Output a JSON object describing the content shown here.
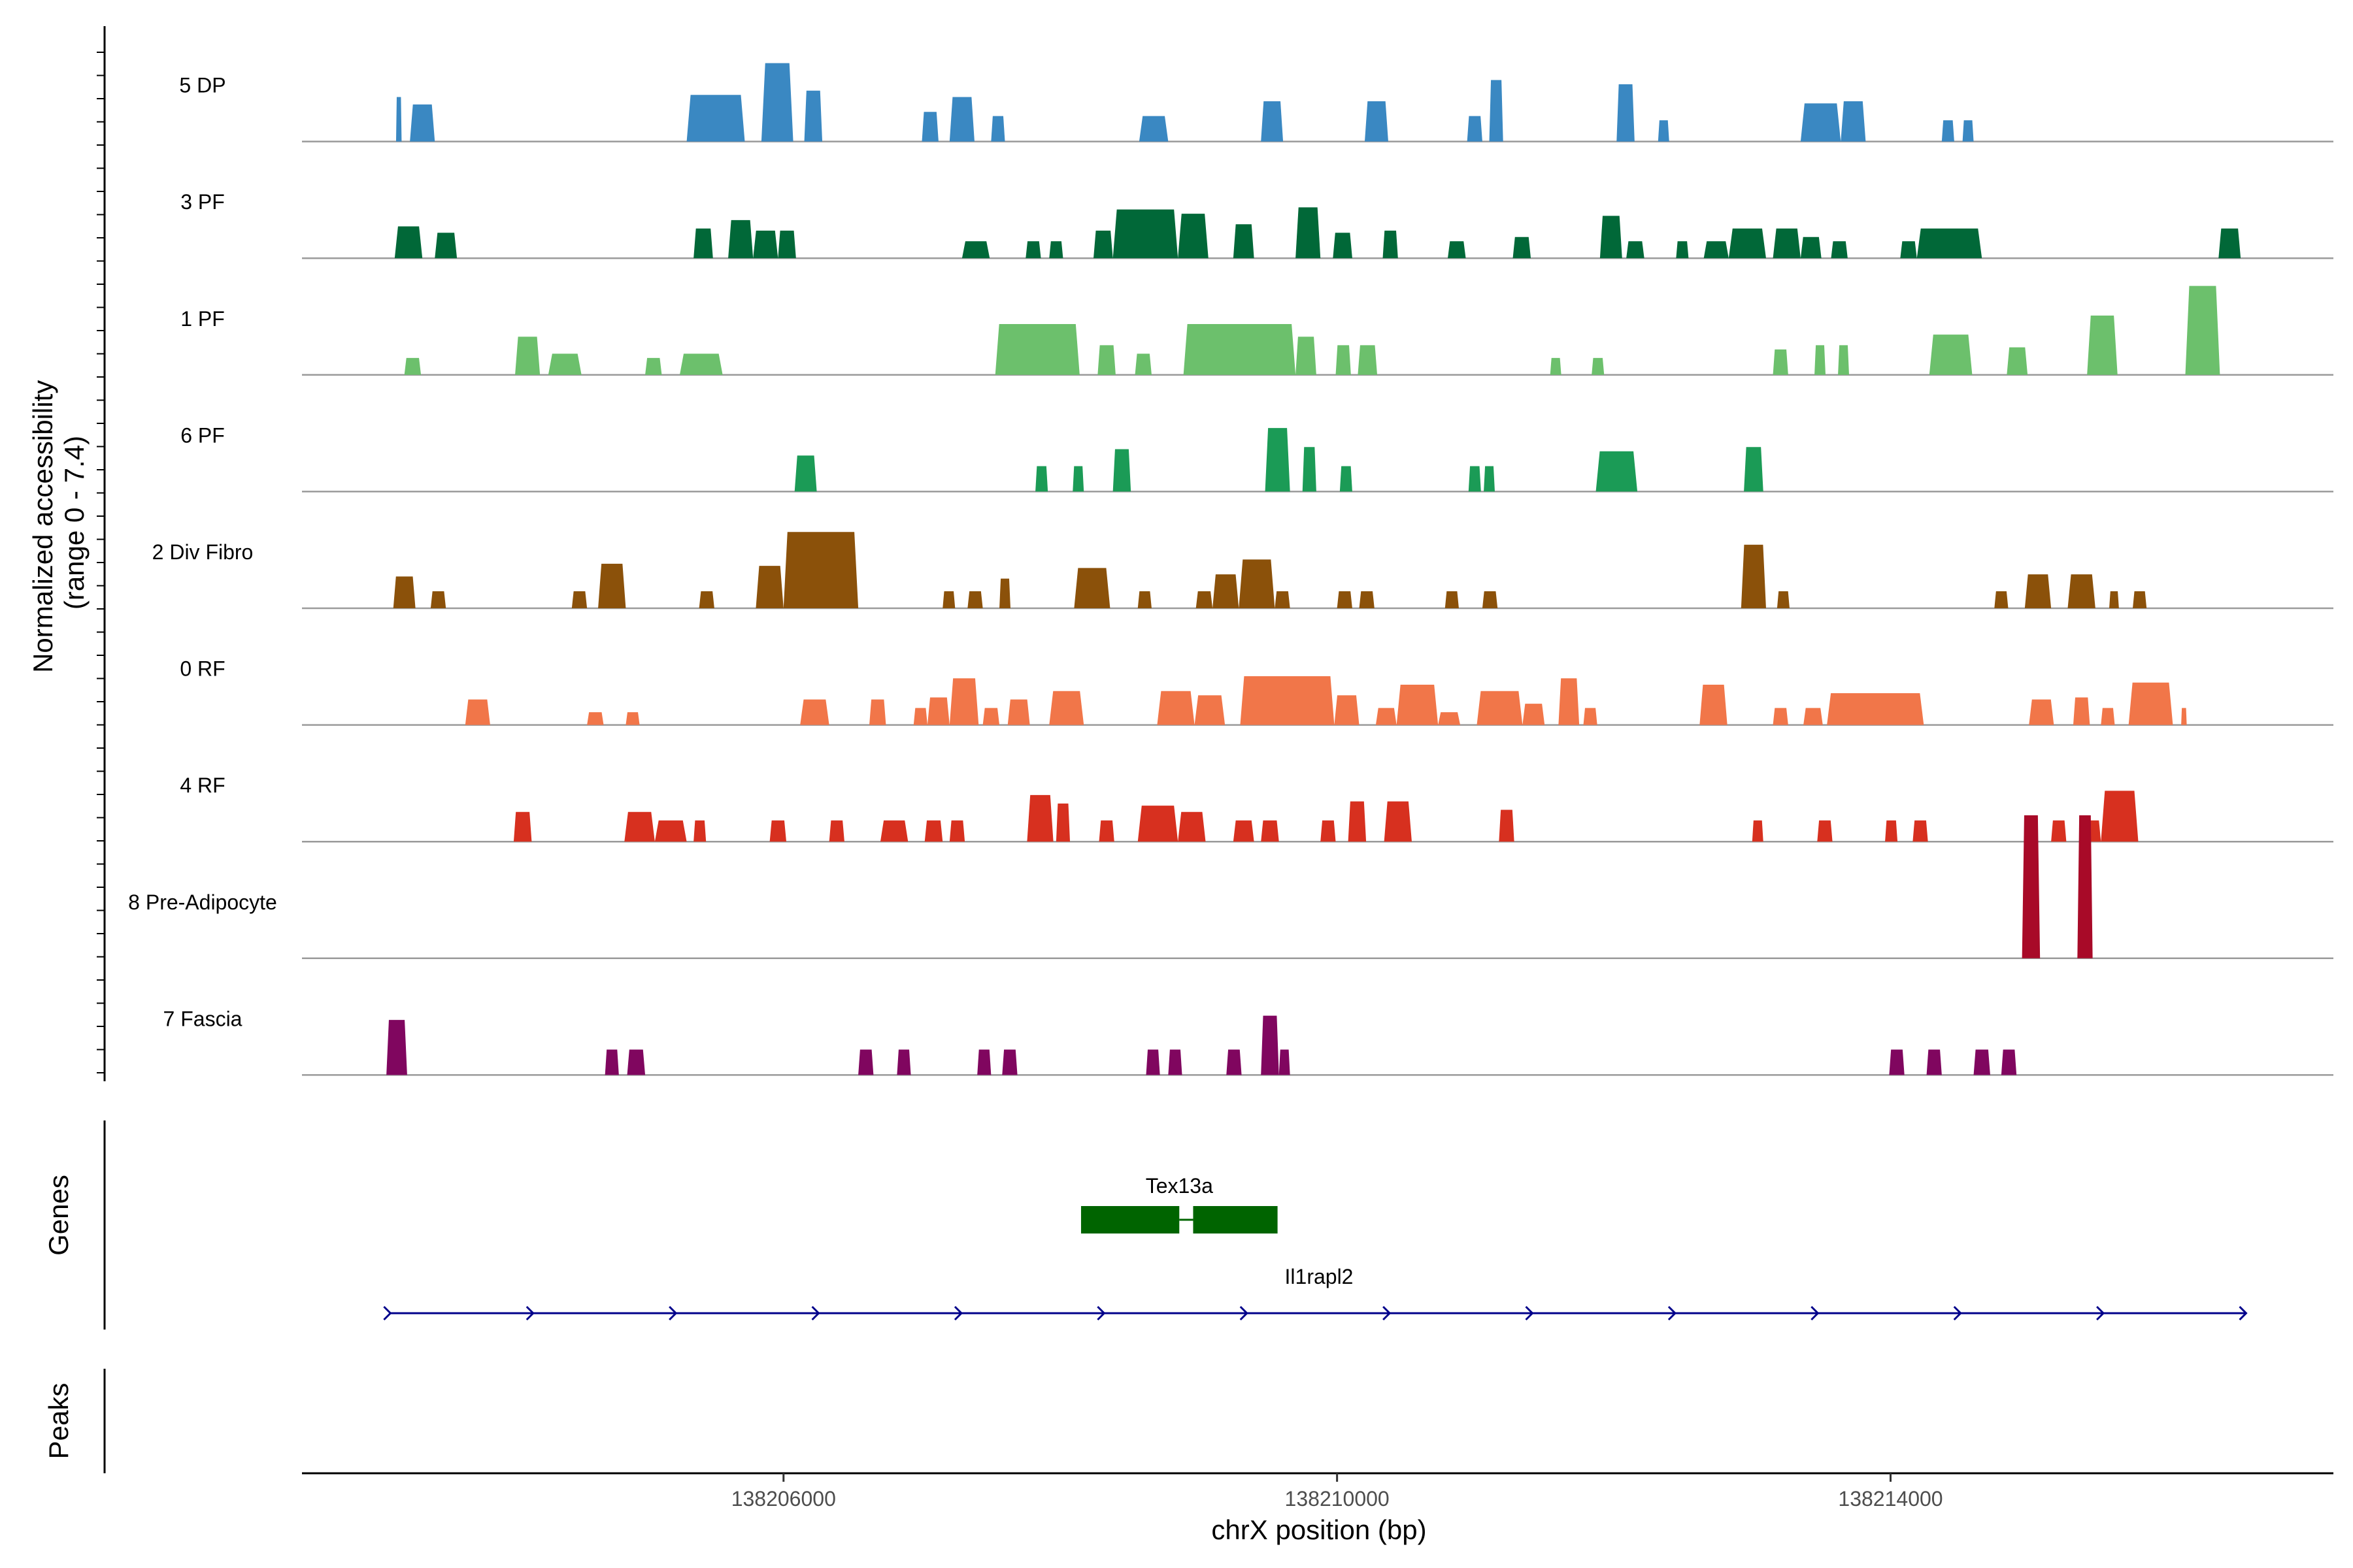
{
  "chart_data": {
    "type": "area",
    "title": "",
    "xlabel": "chrX position (bp)",
    "ylabel": "Normalized accessibility\n(range 0 - 7.4)",
    "y_range": [
      0,
      7.4
    ],
    "x_range": [
      138202520,
      138217200
    ],
    "x_ticks": [
      {
        "value": 138206000,
        "label": "138206000"
      },
      {
        "value": 138210000,
        "label": "138210000"
      },
      {
        "value": 138214000,
        "label": "138214000"
      }
    ],
    "tracks": [
      {
        "name": "5 DP",
        "color": "#3a88c2",
        "peaks": [
          [
            138203200,
            138203240,
            4.2
          ],
          [
            138203300,
            138203480,
            3.5
          ],
          [
            138205300,
            138205720,
            4.4
          ],
          [
            138205840,
            138206070,
            7.4
          ],
          [
            138206150,
            138206280,
            4.8
          ],
          [
            138207000,
            138207120,
            2.8
          ],
          [
            138207200,
            138207380,
            4.2
          ],
          [
            138207500,
            138207600,
            2.4
          ],
          [
            138208570,
            138208780,
            2.4
          ],
          [
            138209450,
            138209610,
            3.8
          ],
          [
            138210200,
            138210370,
            3.8
          ],
          [
            138210940,
            138211050,
            2.4
          ],
          [
            138211100,
            138211200,
            5.8
          ],
          [
            138212020,
            138212150,
            5.4
          ],
          [
            138212320,
            138212400,
            2.0
          ],
          [
            138213350,
            138213640,
            3.6
          ],
          [
            138213640,
            138213820,
            3.8
          ],
          [
            138214370,
            138214460,
            2.0
          ],
          [
            138214520,
            138214600,
            2.0
          ]
        ]
      },
      {
        "name": "3 PF",
        "color": "#016838",
        "peaks": [
          [
            138203190,
            138203390,
            3.0
          ],
          [
            138203480,
            138203640,
            2.4
          ],
          [
            138205350,
            138205490,
            2.8
          ],
          [
            138205600,
            138205780,
            3.6
          ],
          [
            138205780,
            138205960,
            2.6
          ],
          [
            138205960,
            138206090,
            2.6
          ],
          [
            138207290,
            138207490,
            1.6
          ],
          [
            138207750,
            138207860,
            1.6
          ],
          [
            138207920,
            138208020,
            1.6
          ],
          [
            138208240,
            138208380,
            2.6
          ],
          [
            138208380,
            138208850,
            4.6
          ],
          [
            138208850,
            138209070,
            4.2
          ],
          [
            138209250,
            138209400,
            3.2
          ],
          [
            138209700,
            138209880,
            4.8
          ],
          [
            138209970,
            138210110,
            2.4
          ],
          [
            138210330,
            138210440,
            2.6
          ],
          [
            138210800,
            138210930,
            1.6
          ],
          [
            138211270,
            138211400,
            2.0
          ],
          [
            138211900,
            138212060,
            4.0
          ],
          [
            138212090,
            138212220,
            1.6
          ],
          [
            138212450,
            138212540,
            1.6
          ],
          [
            138212650,
            138212830,
            1.6
          ],
          [
            138212830,
            138213100,
            2.8
          ],
          [
            138213150,
            138213350,
            2.8
          ],
          [
            138213350,
            138213500,
            2.0
          ],
          [
            138213570,
            138213690,
            1.6
          ],
          [
            138214070,
            138214190,
            1.6
          ],
          [
            138214190,
            138214660,
            2.8
          ],
          [
            138216370,
            138216530,
            2.8
          ]
        ]
      },
      {
        "name": "1 PF",
        "color": "#6cc06c",
        "peaks": [
          [
            138203260,
            138203380,
            1.6
          ],
          [
            138204060,
            138204240,
            3.6
          ],
          [
            138204300,
            138204540,
            2.0
          ],
          [
            138205000,
            138205120,
            1.6
          ],
          [
            138205250,
            138205560,
            2.0
          ],
          [
            138207530,
            138208140,
            4.8
          ],
          [
            138208270,
            138208400,
            2.8
          ],
          [
            138208540,
            138208660,
            2.0
          ],
          [
            138208890,
            138209700,
            4.8
          ],
          [
            138209700,
            138209850,
            3.6
          ],
          [
            138209990,
            138210100,
            2.8
          ],
          [
            138210150,
            138210290,
            2.8
          ],
          [
            138211540,
            138211620,
            1.6
          ],
          [
            138211840,
            138211930,
            1.6
          ],
          [
            138213150,
            138213260,
            2.4
          ],
          [
            138213450,
            138213530,
            2.8
          ],
          [
            138213620,
            138213700,
            2.8
          ],
          [
            138214280,
            138214590,
            3.8
          ],
          [
            138214840,
            138214990,
            2.6
          ],
          [
            138215420,
            138215640,
            5.6
          ],
          [
            138216130,
            138216380,
            8.4
          ]
        ]
      },
      {
        "name": "6 PF",
        "color": "#1b9b56",
        "peaks": [
          [
            138206080,
            138206240,
            3.4
          ],
          [
            138207820,
            138207910,
            2.4
          ],
          [
            138208090,
            138208170,
            2.4
          ],
          [
            138208380,
            138208510,
            4.0
          ],
          [
            138209480,
            138209660,
            6.0
          ],
          [
            138209750,
            138209850,
            4.2
          ],
          [
            138210020,
            138210110,
            2.4
          ],
          [
            138210950,
            138211040,
            2.4
          ],
          [
            138211060,
            138211140,
            2.4
          ],
          [
            138211870,
            138212170,
            3.8
          ],
          [
            138212940,
            138213080,
            4.2
          ]
        ]
      },
      {
        "name": "2 Div Fibro",
        "color": "#8b510a",
        "peaks": [
          [
            138203180,
            138203340,
            3.0
          ],
          [
            138203450,
            138203560,
            1.6
          ],
          [
            138204470,
            138204580,
            1.6
          ],
          [
            138204660,
            138204860,
            4.2
          ],
          [
            138205390,
            138205500,
            1.6
          ],
          [
            138205800,
            138206000,
            4.0
          ],
          [
            138206000,
            138206540,
            7.2
          ],
          [
            138207150,
            138207240,
            1.6
          ],
          [
            138207330,
            138207440,
            1.6
          ],
          [
            138207560,
            138207640,
            2.8
          ],
          [
            138208100,
            138208360,
            3.8
          ],
          [
            138208560,
            138208660,
            1.6
          ],
          [
            138208980,
            138209100,
            1.6
          ],
          [
            138209100,
            138209290,
            3.2
          ],
          [
            138209290,
            138209550,
            4.6
          ],
          [
            138209550,
            138209660,
            1.6
          ],
          [
            138210000,
            138210110,
            1.6
          ],
          [
            138210160,
            138210270,
            1.6
          ],
          [
            138210780,
            138210880,
            1.6
          ],
          [
            138211050,
            138211160,
            1.6
          ],
          [
            138212920,
            138213100,
            6.0
          ],
          [
            138213180,
            138213270,
            1.6
          ],
          [
            138214750,
            138214850,
            1.6
          ],
          [
            138214970,
            138215160,
            3.2
          ],
          [
            138215280,
            138215480,
            3.2
          ],
          [
            138215580,
            138215650,
            1.6
          ],
          [
            138215750,
            138215850,
            1.6
          ]
        ]
      },
      {
        "name": "0 RF",
        "color": "#f17649",
        "peaks": [
          [
            138203700,
            138203880,
            2.4
          ],
          [
            138204580,
            138204700,
            1.2
          ],
          [
            138204860,
            138204960,
            1.2
          ],
          [
            138206120,
            138206330,
            2.4
          ],
          [
            138206620,
            138206740,
            2.4
          ],
          [
            138206940,
            138207040,
            1.6
          ],
          [
            138207040,
            138207200,
            2.6
          ],
          [
            138207200,
            138207410,
            4.4
          ],
          [
            138207440,
            138207560,
            1.6
          ],
          [
            138207620,
            138207780,
            2.4
          ],
          [
            138207920,
            138208170,
            3.2
          ],
          [
            138208700,
            138208970,
            3.2
          ],
          [
            138208970,
            138209190,
            2.8
          ],
          [
            138209300,
            138209980,
            4.6
          ],
          [
            138209980,
            138210160,
            2.8
          ],
          [
            138210280,
            138210430,
            1.6
          ],
          [
            138210430,
            138210730,
            3.8
          ],
          [
            138210730,
            138210890,
            1.2
          ],
          [
            138211010,
            138211340,
            3.2
          ],
          [
            138211340,
            138211500,
            2.0
          ],
          [
            138211600,
            138211750,
            4.4
          ],
          [
            138211780,
            138211880,
            1.6
          ],
          [
            138212620,
            138212820,
            3.8
          ],
          [
            138213150,
            138213260,
            1.6
          ],
          [
            138213370,
            138213510,
            1.6
          ],
          [
            138213540,
            138214240,
            3.0
          ],
          [
            138215000,
            138215180,
            2.4
          ],
          [
            138215320,
            138215440,
            2.6
          ],
          [
            138215520,
            138215620,
            1.6
          ],
          [
            138215720,
            138216040,
            4.0
          ],
          [
            138216100,
            138216140,
            1.6
          ]
        ]
      },
      {
        "name": "4 RF",
        "color": "#d7301f",
        "peaks": [
          [
            138204050,
            138204180,
            2.8
          ],
          [
            138204850,
            138205070,
            2.8
          ],
          [
            138205070,
            138205300,
            2.0
          ],
          [
            138205350,
            138205440,
            2.0
          ],
          [
            138205900,
            138206020,
            2.0
          ],
          [
            138206330,
            138206440,
            2.0
          ],
          [
            138206700,
            138206900,
            2.0
          ],
          [
            138207020,
            138207150,
            2.0
          ],
          [
            138207200,
            138207310,
            2.0
          ],
          [
            138207760,
            138207950,
            4.4
          ],
          [
            138207970,
            138208070,
            3.6
          ],
          [
            138208280,
            138208390,
            2.0
          ],
          [
            138208560,
            138208850,
            3.4
          ],
          [
            138208850,
            138209050,
            2.8
          ],
          [
            138209250,
            138209400,
            2.0
          ],
          [
            138209450,
            138209580,
            2.0
          ],
          [
            138209880,
            138209990,
            2.0
          ],
          [
            138210080,
            138210210,
            3.8
          ],
          [
            138210340,
            138210540,
            3.8
          ],
          [
            138211170,
            138211280,
            3.0
          ],
          [
            138213000,
            138213080,
            2.0
          ],
          [
            138213470,
            138213580,
            2.0
          ],
          [
            138213960,
            138214050,
            2.0
          ],
          [
            138214160,
            138214270,
            2.0
          ],
          [
            138215160,
            138215270,
            2.0
          ],
          [
            138215400,
            138215520,
            2.0
          ],
          [
            138215520,
            138215790,
            4.8
          ]
        ]
      },
      {
        "name": "8 Pre-Adipocyte",
        "color": "#a80a28",
        "peaks": [
          [
            138214950,
            138215080,
            13.5
          ],
          [
            138215350,
            138215460,
            13.5
          ]
        ]
      },
      {
        "name": "7 Fascia",
        "color": "#80065f",
        "peaks": [
          [
            138203130,
            138203280,
            5.2
          ],
          [
            138204710,
            138204810,
            2.4
          ],
          [
            138204870,
            138205000,
            2.4
          ],
          [
            138206540,
            138206650,
            2.4
          ],
          [
            138206820,
            138206920,
            2.4
          ],
          [
            138207400,
            138207500,
            2.4
          ],
          [
            138207580,
            138207690,
            2.4
          ],
          [
            138208620,
            138208720,
            2.4
          ],
          [
            138208780,
            138208880,
            2.4
          ],
          [
            138209200,
            138209310,
            2.4
          ],
          [
            138209450,
            138209580,
            5.6
          ],
          [
            138209580,
            138209660,
            2.4
          ],
          [
            138213990,
            138214100,
            2.4
          ],
          [
            138214260,
            138214370,
            2.4
          ],
          [
            138214600,
            138214720,
            2.4
          ],
          [
            138214800,
            138214910,
            2.4
          ]
        ]
      }
    ],
    "genes": [
      {
        "name": "Tex13a",
        "color": "#006400",
        "strand": "",
        "exons": [
          [
            138208150,
            138208860
          ],
          [
            138208960,
            138209570
          ]
        ]
      },
      {
        "name": "Il1rapl2",
        "color": "#00008b",
        "strand": "+",
        "start": 138203150,
        "end": 138216560
      }
    ],
    "panel_labels": {
      "genes": "Genes",
      "peaks": "Peaks"
    }
  }
}
